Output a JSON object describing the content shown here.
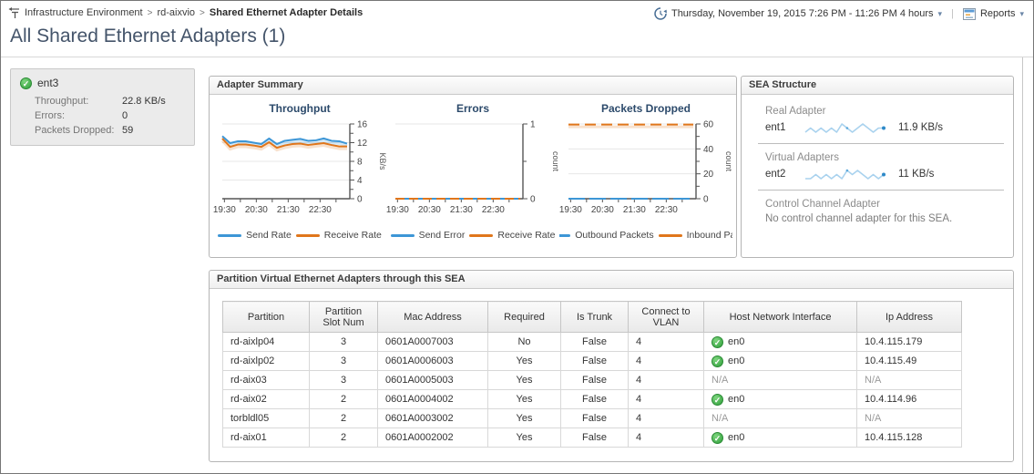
{
  "page": {
    "breadcrumb": [
      "Infrastructure Environment",
      "rd-aixvio",
      "Shared Ethernet Adapter Details"
    ],
    "title": "All Shared Ethernet Adapters (1)",
    "time_range": "Thursday, November 19, 2015 7:26 PM - 11:26 PM 4 hours",
    "reports_label": "Reports"
  },
  "colors": {
    "series_blue": "#3d96d6",
    "series_orange": "#e0761b",
    "status_green": "#2e9e3a",
    "title_color": "#44546a"
  },
  "summary_tile": {
    "name": "ent3",
    "status_icon": "green-check",
    "rows": [
      {
        "label": "Throughput:",
        "value": "22.8 KB/s"
      },
      {
        "label": "Errors:",
        "value": "0"
      },
      {
        "label": "Packets Dropped:",
        "value": "59"
      }
    ]
  },
  "adapter_summary": {
    "title": "Adapter Summary"
  },
  "chart_data": [
    {
      "type": "line",
      "title": "Throughput",
      "ylabel": "KB/s",
      "ylim": [
        0,
        16
      ],
      "yticks": [
        0,
        4,
        8,
        12,
        16
      ],
      "minor_yticks": [
        2,
        6,
        10,
        14
      ],
      "x_labels": [
        "19:30",
        "20:30",
        "21:30",
        "22:30"
      ],
      "series": [
        {
          "name": "Send Rate",
          "color": "#3d96d6",
          "values": [
            13.4,
            11.9,
            12.3,
            12.3,
            12.0,
            11.7,
            12.9,
            11.7,
            12.4,
            12.6,
            12.8,
            12.4,
            12.5,
            12.9,
            12.4,
            12.3,
            11.8
          ]
        },
        {
          "name": "Receive Rate",
          "color": "#e0761b",
          "values": [
            12.9,
            11.1,
            11.6,
            11.6,
            11.4,
            11.1,
            12.1,
            10.9,
            11.4,
            11.7,
            11.8,
            11.5,
            11.7,
            11.9,
            11.5,
            11.2,
            11.2
          ]
        }
      ]
    },
    {
      "type": "line",
      "title": "Errors",
      "ylabel": "count",
      "ylim": [
        0,
        1
      ],
      "yticks": [
        0,
        1
      ],
      "minor_yticks": [
        0.5
      ],
      "x_labels": [
        "19:30",
        "20:30",
        "21:30",
        "22:30"
      ],
      "series": [
        {
          "name": "Send Error",
          "color": "#3d96d6",
          "values": [
            0,
            0,
            0,
            0,
            0,
            0,
            0,
            0,
            0,
            0,
            0,
            0,
            0,
            0,
            0,
            0,
            0
          ]
        },
        {
          "name": "Receive Rate",
          "color": "#e0761b",
          "dash": "10 5",
          "values": [
            0,
            0,
            0,
            0,
            0,
            0,
            0,
            0,
            0,
            0,
            0,
            0,
            0,
            0,
            0,
            0,
            0
          ]
        }
      ]
    },
    {
      "type": "line",
      "title": "Packets Dropped",
      "ylabel": "count",
      "ylim": [
        0,
        60
      ],
      "yticks": [
        0,
        20,
        40,
        60
      ],
      "minor_yticks": [
        10,
        30,
        50
      ],
      "x_labels": [
        "19:30",
        "20:30",
        "21:30",
        "22:30"
      ],
      "series": [
        {
          "name": "Outbound Packets",
          "color": "#3d96d6",
          "dash": "18 5",
          "values": [
            0,
            0,
            0,
            0,
            0,
            0,
            0,
            0,
            0,
            0,
            0,
            0,
            0,
            0,
            0,
            0,
            0
          ]
        },
        {
          "name": "Inbound Pack",
          "color": "#e0761b",
          "dash": "12 6",
          "values": [
            59.5,
            59.5,
            59.5,
            59.5,
            59.5,
            59.5,
            59.5,
            59.5,
            59.5,
            59.5,
            59.5,
            59.5,
            59.5,
            59.5,
            59.5,
            59.5,
            59.5
          ]
        }
      ]
    }
  ],
  "sea_structure": {
    "title": "SEA Structure",
    "sections": [
      {
        "label": "Real Adapter",
        "adapter": "ent1",
        "value": "11.9 KB/s",
        "sparkline": [
          5,
          6,
          5,
          6,
          5,
          6,
          5,
          7,
          6,
          5,
          6,
          7,
          6,
          5,
          6,
          6
        ]
      },
      {
        "label": "Virtual Adapters",
        "adapter": "ent2",
        "value": "11 KB/s",
        "sparkline": [
          5,
          5,
          6,
          5,
          6,
          5,
          6,
          5,
          7,
          6,
          7,
          6,
          5,
          6,
          5,
          6
        ]
      },
      {
        "label": "Control Channel Adapter",
        "message": "No control channel adapter for this SEA."
      }
    ]
  },
  "partition_table": {
    "title": "Partition Virtual Ethernet Adapters through this SEA",
    "columns": [
      "Partition",
      "Partition Slot Num",
      "Mac Address",
      "Required",
      "Is Trunk",
      "Connect to VLAN",
      "Host Network Interface",
      "Ip Address"
    ],
    "rows": [
      {
        "partition": "rd-aixlp04",
        "slot": "3",
        "mac": "0601A0007003",
        "required": "No",
        "is_trunk": "False",
        "vlan": "4",
        "host_if": "en0",
        "host_if_status": "ok",
        "ip": "10.4.115.179"
      },
      {
        "partition": "rd-aixlp02",
        "slot": "3",
        "mac": "0601A0006003",
        "required": "Yes",
        "is_trunk": "False",
        "vlan": "4",
        "host_if": "en0",
        "host_if_status": "ok",
        "ip": "10.4.115.49"
      },
      {
        "partition": "rd-aix03",
        "slot": "3",
        "mac": "0601A0005003",
        "required": "Yes",
        "is_trunk": "False",
        "vlan": "4",
        "host_if": "N/A",
        "host_if_status": "na",
        "ip": "N/A"
      },
      {
        "partition": "rd-aix02",
        "slot": "2",
        "mac": "0601A0004002",
        "required": "Yes",
        "is_trunk": "False",
        "vlan": "4",
        "host_if": "en0",
        "host_if_status": "ok",
        "ip": "10.4.114.96"
      },
      {
        "partition": "torbldl05",
        "slot": "2",
        "mac": "0601A0003002",
        "required": "Yes",
        "is_trunk": "False",
        "vlan": "4",
        "host_if": "N/A",
        "host_if_status": "na",
        "ip": "N/A"
      },
      {
        "partition": "rd-aix01",
        "slot": "2",
        "mac": "0601A0002002",
        "required": "Yes",
        "is_trunk": "False",
        "vlan": "4",
        "host_if": "en0",
        "host_if_status": "ok",
        "ip": "10.4.115.128"
      }
    ]
  }
}
